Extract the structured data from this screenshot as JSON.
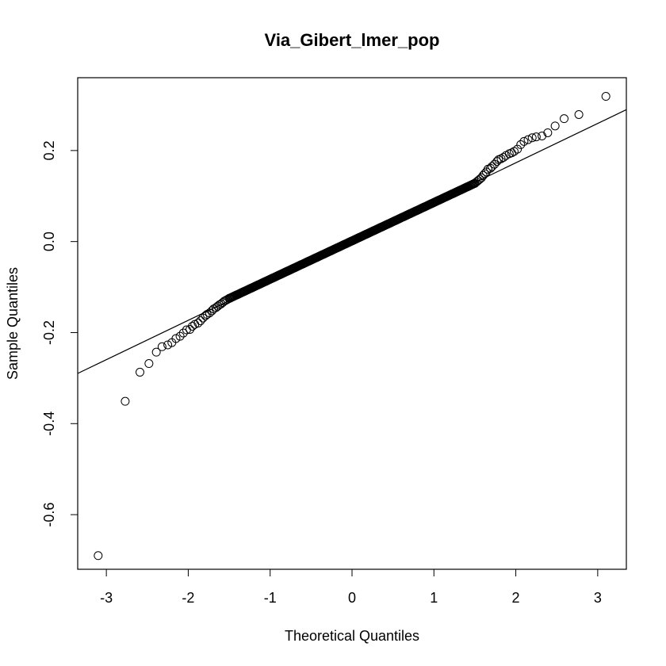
{
  "chart_data": {
    "type": "scatter",
    "title": "Via_Gibert_lmer_pop",
    "xlabel": "Theoretical Quantiles",
    "ylabel": "Sample Quantiles",
    "xlim": [
      -3.35,
      3.35
    ],
    "ylim": [
      -0.72,
      0.36
    ],
    "x_ticks": [
      -3,
      -2,
      -1,
      0,
      1,
      2,
      3
    ],
    "x_tick_labels": [
      "-3",
      "-2",
      "-1",
      "0",
      "1",
      "2",
      "3"
    ],
    "y_ticks": [
      -0.6,
      -0.4,
      -0.2,
      0.0,
      0.2
    ],
    "y_tick_labels": [
      "-0.6",
      "-0.4",
      "-0.2",
      "0.0",
      "0.2"
    ],
    "grid": false,
    "series": [
      {
        "kind": "points",
        "marker": "open-circle",
        "x": [
          -3.1,
          -2.77,
          -2.59,
          -2.48,
          -2.39,
          -2.32,
          -2.25,
          -2.2,
          -2.15,
          -2.1,
          -2.06,
          -2.02,
          -1.98,
          -1.95,
          -1.92,
          -1.88,
          -1.85,
          -1.82,
          -1.79,
          -1.77,
          -1.74,
          -1.71,
          -1.69,
          -1.66,
          -1.64,
          -1.62,
          -1.6,
          -1.58,
          -1.56,
          -1.54,
          -1.52,
          -1.5,
          1.5,
          1.52,
          1.54,
          1.56,
          1.58,
          1.6,
          1.62,
          1.64,
          1.66,
          1.69,
          1.71,
          1.74,
          1.77,
          1.79,
          1.82,
          1.85,
          1.88,
          1.92,
          1.95,
          1.98,
          2.02,
          2.06,
          2.1,
          2.15,
          2.2,
          2.25,
          2.32,
          2.39,
          2.48,
          2.59,
          2.77,
          3.1
        ],
        "y": [
          -0.69,
          -0.351,
          -0.287,
          -0.268,
          -0.243,
          -0.231,
          -0.227,
          -0.222,
          -0.213,
          -0.208,
          -0.201,
          -0.194,
          -0.193,
          -0.186,
          -0.182,
          -0.179,
          -0.174,
          -0.168,
          -0.163,
          -0.16,
          -0.157,
          -0.152,
          -0.148,
          -0.145,
          -0.142,
          -0.139,
          -0.137,
          -0.134,
          -0.131,
          -0.129,
          -0.127,
          -0.125,
          0.128,
          0.131,
          0.134,
          0.137,
          0.14,
          0.145,
          0.149,
          0.153,
          0.159,
          0.161,
          0.165,
          0.17,
          0.176,
          0.18,
          0.182,
          0.185,
          0.189,
          0.193,
          0.195,
          0.198,
          0.203,
          0.213,
          0.22,
          0.224,
          0.228,
          0.23,
          0.232,
          0.239,
          0.254,
          0.27,
          0.279,
          0.319
        ]
      },
      {
        "kind": "dense-band",
        "marker": "open-circle",
        "x_range": [
          -1.5,
          1.5
        ],
        "y_range": [
          -0.125,
          0.128
        ]
      },
      {
        "kind": "reference-line",
        "intercept": 0.0,
        "slope": 0.0865
      }
    ]
  }
}
